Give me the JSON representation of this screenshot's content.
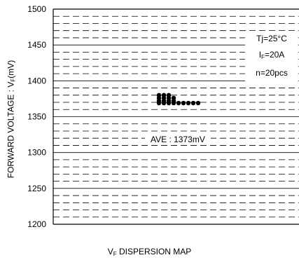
{
  "chart_data": {
    "type": "scatter",
    "title": "",
    "ylabel": {
      "main": "FORWARD VOLTAGE : V",
      "sub": "F",
      "tail": "(mV)"
    },
    "xlabel": {
      "main": "V",
      "sub": "F",
      "tail": " DISPERSION MAP"
    },
    "ylim": [
      1200,
      1500
    ],
    "y_ticks": [
      "1500",
      "1450",
      "1400",
      "1350",
      "1300",
      "1250",
      "1200"
    ],
    "grid": true,
    "conditions": [
      {
        "main": "Tj=25°C",
        "sub": "",
        "tail": ""
      },
      {
        "main": "I",
        "sub": "F",
        "tail": "=20A"
      },
      {
        "main": "n=20pcs",
        "sub": "",
        "tail": ""
      }
    ],
    "average_label": "AVE : 1373mV",
    "points": [
      {
        "x": 0,
        "y": 1380
      },
      {
        "x": 0,
        "y": 1376
      },
      {
        "x": 0,
        "y": 1372
      },
      {
        "x": 0,
        "y": 1369
      },
      {
        "x": 1,
        "y": 1380
      },
      {
        "x": 1,
        "y": 1376
      },
      {
        "x": 1,
        "y": 1372
      },
      {
        "x": 1,
        "y": 1369
      },
      {
        "x": 2,
        "y": 1380
      },
      {
        "x": 2,
        "y": 1376
      },
      {
        "x": 2,
        "y": 1372
      },
      {
        "x": 2,
        "y": 1369
      },
      {
        "x": 3,
        "y": 1376
      },
      {
        "x": 3,
        "y": 1372
      },
      {
        "x": 3,
        "y": 1369
      },
      {
        "x": 4,
        "y": 1369
      },
      {
        "x": 5,
        "y": 1369
      },
      {
        "x": 6,
        "y": 1369
      },
      {
        "x": 7,
        "y": 1369
      },
      {
        "x": 8,
        "y": 1369
      }
    ]
  }
}
